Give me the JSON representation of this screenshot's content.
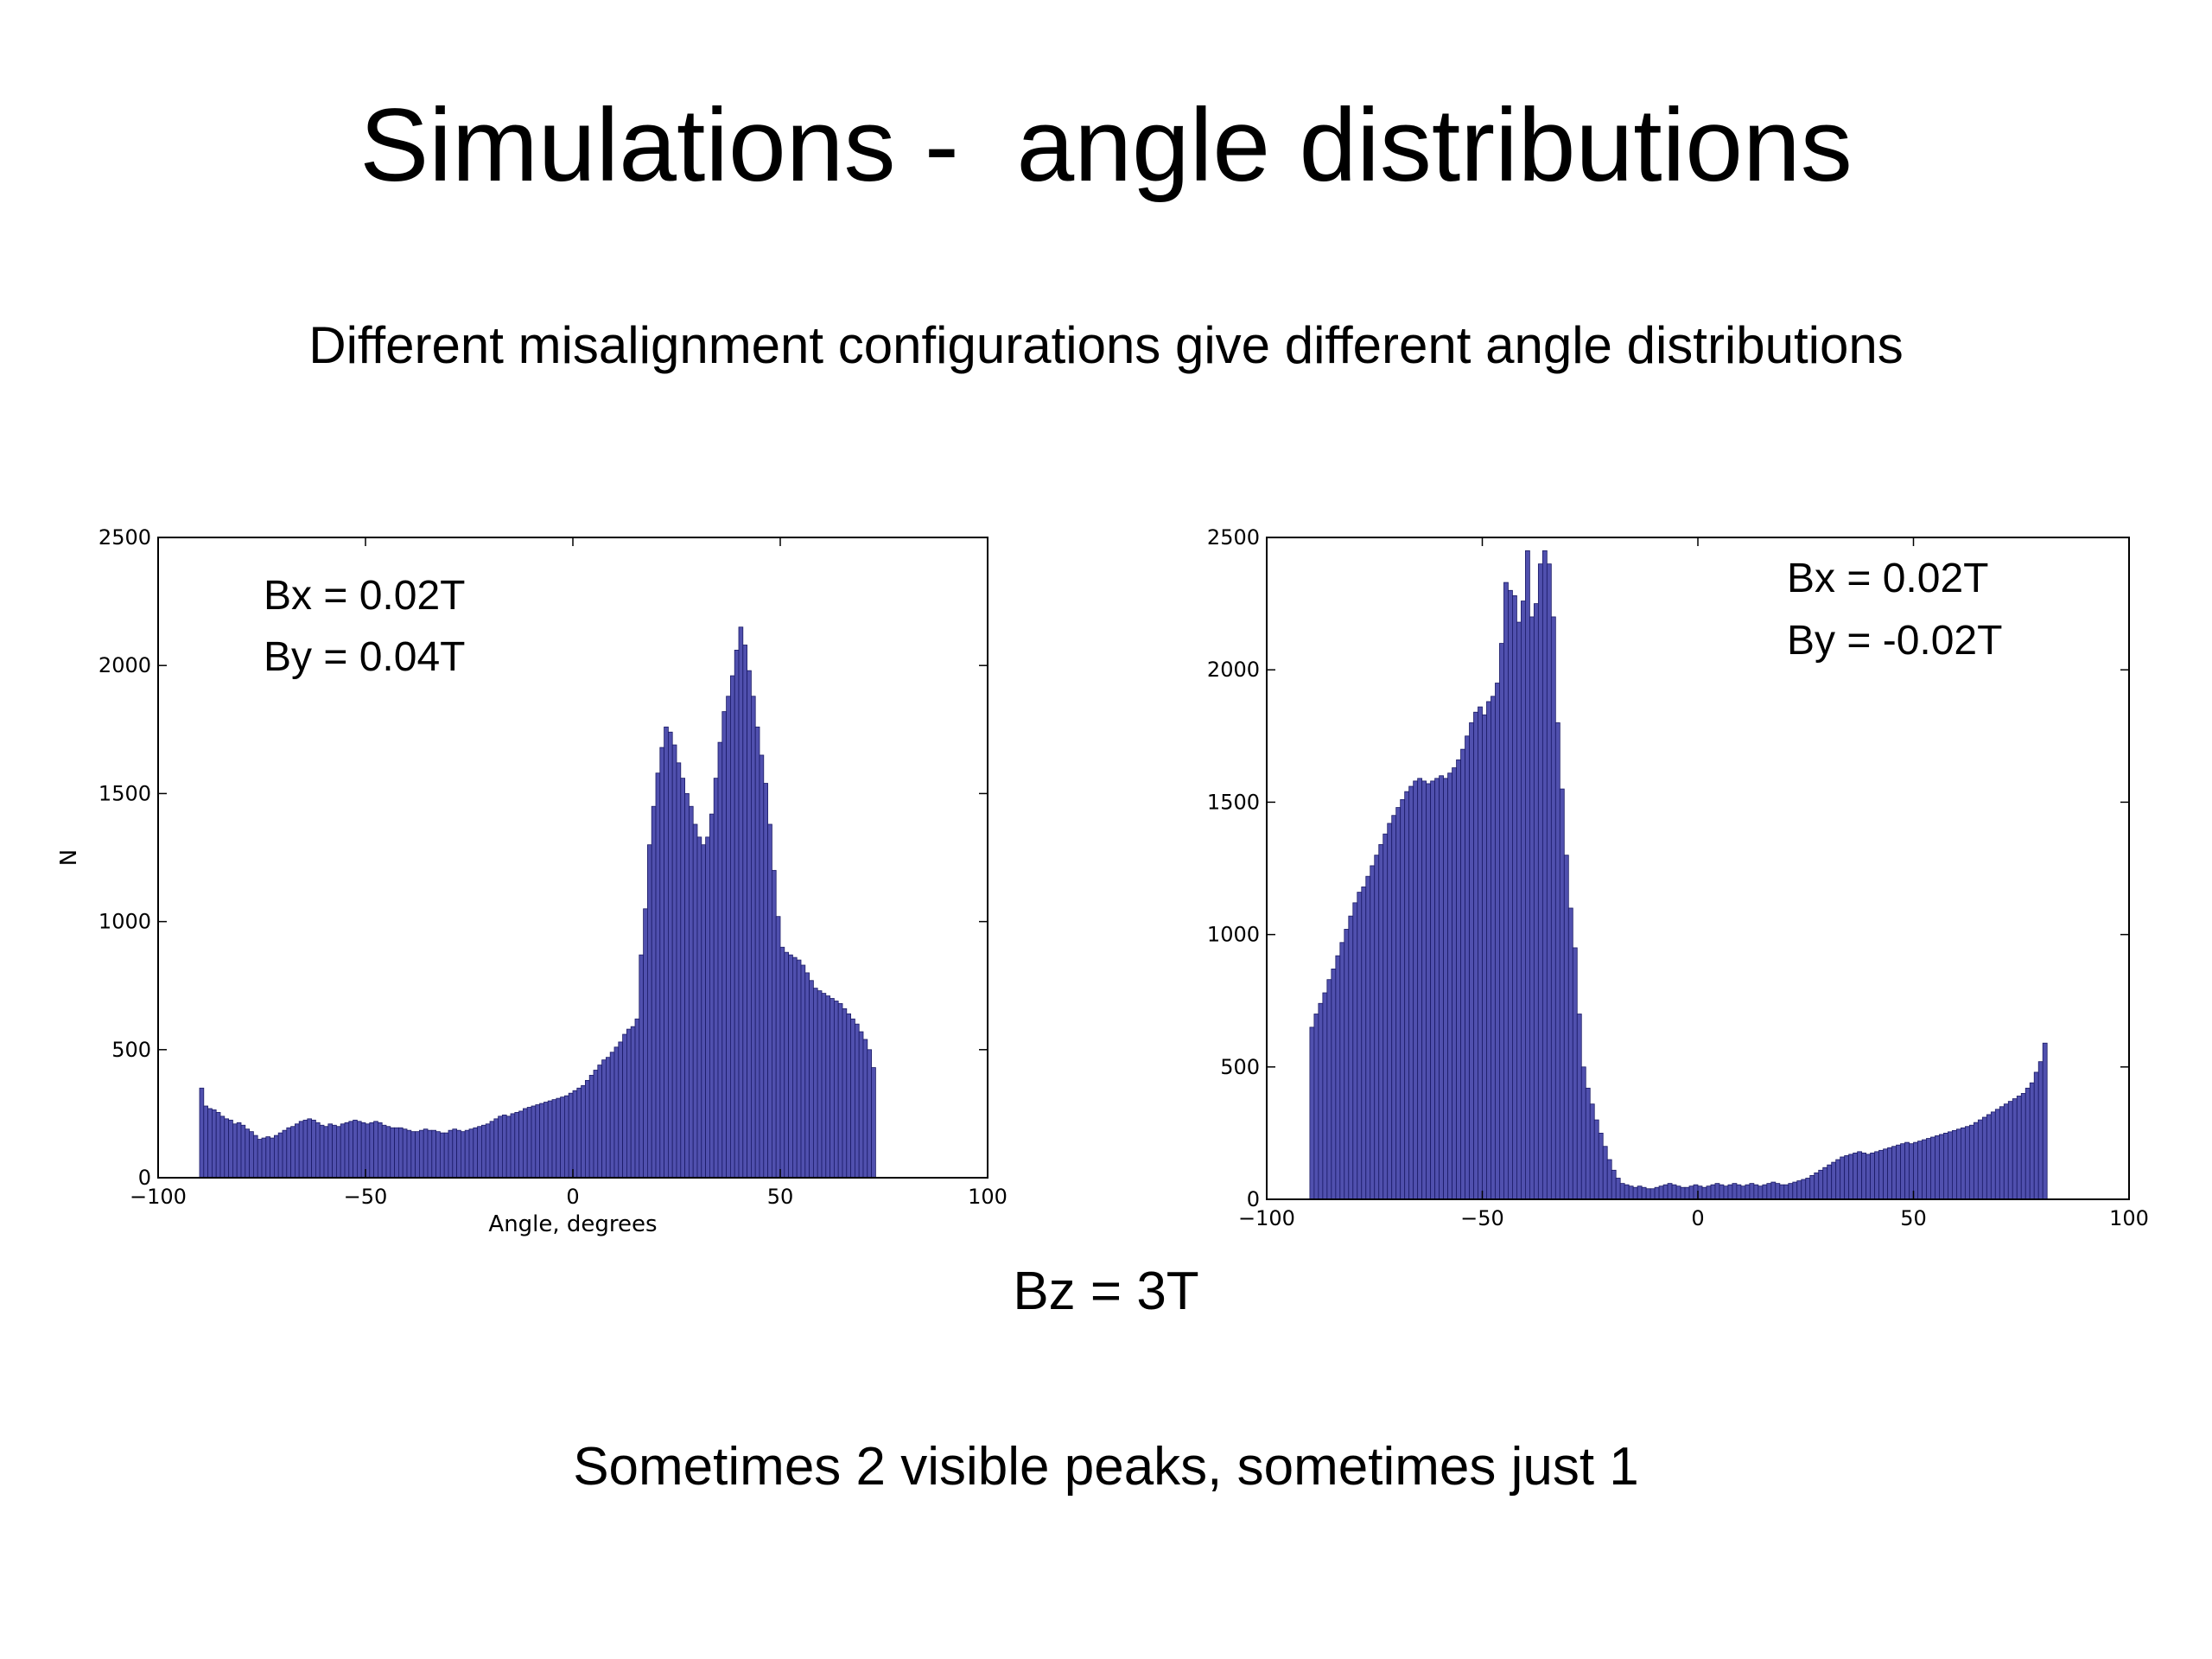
{
  "slide": {
    "title": "Simulations -  angle distributions",
    "subtitle": "Different misalignment configurations give different angle distributions",
    "bz_label": "Bz = 3T",
    "footer": "Sometimes 2 visible peaks, sometimes just 1"
  },
  "colors": {
    "bar_fill": "#5050ae",
    "bar_edge": "#1a1a66",
    "axis": "#000000"
  },
  "chart_data": [
    {
      "type": "bar",
      "xlabel": "Angle, degrees",
      "ylabel": "N",
      "xlim": [
        -100,
        100
      ],
      "ylim": [
        0,
        2500
      ],
      "xticks": [
        -100,
        -50,
        0,
        50,
        100
      ],
      "xtick_labels": [
        "−100",
        "−50",
        "0",
        "50",
        "100"
      ],
      "yticks": [
        0,
        500,
        1000,
        1500,
        2000,
        2500
      ],
      "ytick_labels": [
        "0",
        "500",
        "1000",
        "1500",
        "2000",
        "2500"
      ],
      "annotations": [
        "Bx  = 0.02T",
        "By = 0.04T"
      ],
      "bin_start": -90,
      "bin_width": 1,
      "values": [
        350,
        280,
        270,
        265,
        255,
        240,
        230,
        225,
        210,
        215,
        205,
        190,
        180,
        165,
        150,
        155,
        160,
        155,
        165,
        175,
        185,
        195,
        200,
        210,
        220,
        225,
        230,
        225,
        215,
        205,
        200,
        210,
        205,
        200,
        210,
        215,
        220,
        225,
        220,
        215,
        210,
        215,
        220,
        215,
        205,
        200,
        195,
        195,
        195,
        190,
        185,
        180,
        180,
        185,
        190,
        185,
        185,
        180,
        175,
        175,
        185,
        190,
        185,
        180,
        185,
        190,
        195,
        200,
        205,
        210,
        220,
        230,
        240,
        245,
        240,
        250,
        255,
        260,
        270,
        275,
        280,
        285,
        290,
        295,
        300,
        305,
        310,
        315,
        320,
        330,
        340,
        350,
        360,
        380,
        400,
        420,
        440,
        460,
        470,
        490,
        510,
        530,
        560,
        580,
        590,
        620,
        870,
        1050,
        1300,
        1450,
        1580,
        1680,
        1760,
        1740,
        1690,
        1620,
        1560,
        1500,
        1450,
        1380,
        1330,
        1300,
        1330,
        1420,
        1560,
        1700,
        1820,
        1880,
        1960,
        2060,
        2150,
        2080,
        1980,
        1880,
        1760,
        1650,
        1540,
        1380,
        1200,
        1020,
        900,
        880,
        870,
        860,
        850,
        830,
        800,
        770,
        740,
        730,
        720,
        710,
        700,
        690,
        680,
        660,
        640,
        620,
        600,
        570,
        540,
        500,
        430
      ]
    },
    {
      "type": "bar",
      "xlabel": "",
      "ylabel": "",
      "xlim": [
        -100,
        100
      ],
      "ylim": [
        0,
        2500
      ],
      "xticks": [
        -100,
        -50,
        0,
        50,
        100
      ],
      "xtick_labels": [
        "−100",
        "−50",
        "0",
        "50",
        "100"
      ],
      "yticks": [
        0,
        500,
        1000,
        1500,
        2000,
        2500
      ],
      "ytick_labels": [
        "0",
        "500",
        "1000",
        "1500",
        "2000",
        "2500"
      ],
      "annotations": [
        "Bx = 0.02T",
        "By = -0.02T"
      ],
      "bin_start": -90,
      "bin_width": 1,
      "values": [
        650,
        700,
        740,
        780,
        830,
        870,
        920,
        970,
        1020,
        1070,
        1120,
        1160,
        1180,
        1220,
        1260,
        1300,
        1340,
        1380,
        1420,
        1450,
        1480,
        1510,
        1540,
        1560,
        1580,
        1590,
        1580,
        1570,
        1580,
        1590,
        1600,
        1590,
        1610,
        1630,
        1660,
        1700,
        1750,
        1800,
        1840,
        1860,
        1830,
        1880,
        1900,
        1950,
        2100,
        2330,
        2300,
        2280,
        2180,
        2260,
        2450,
        2200,
        2250,
        2400,
        2450,
        2400,
        2200,
        1800,
        1550,
        1300,
        1100,
        950,
        700,
        500,
        420,
        360,
        300,
        250,
        200,
        150,
        110,
        80,
        60,
        55,
        50,
        45,
        50,
        45,
        40,
        40,
        45,
        50,
        55,
        60,
        55,
        50,
        45,
        45,
        50,
        55,
        50,
        45,
        50,
        55,
        60,
        55,
        50,
        55,
        60,
        55,
        50,
        55,
        60,
        55,
        50,
        55,
        60,
        65,
        60,
        55,
        55,
        60,
        65,
        70,
        75,
        80,
        90,
        100,
        110,
        120,
        130,
        140,
        150,
        160,
        165,
        170,
        175,
        180,
        175,
        170,
        175,
        180,
        185,
        190,
        195,
        200,
        205,
        210,
        215,
        210,
        215,
        220,
        225,
        230,
        235,
        240,
        245,
        250,
        255,
        260,
        265,
        270,
        275,
        280,
        290,
        300,
        310,
        320,
        330,
        340,
        350,
        360,
        370,
        380,
        390,
        400,
        420,
        440,
        480,
        520,
        590
      ]
    }
  ]
}
